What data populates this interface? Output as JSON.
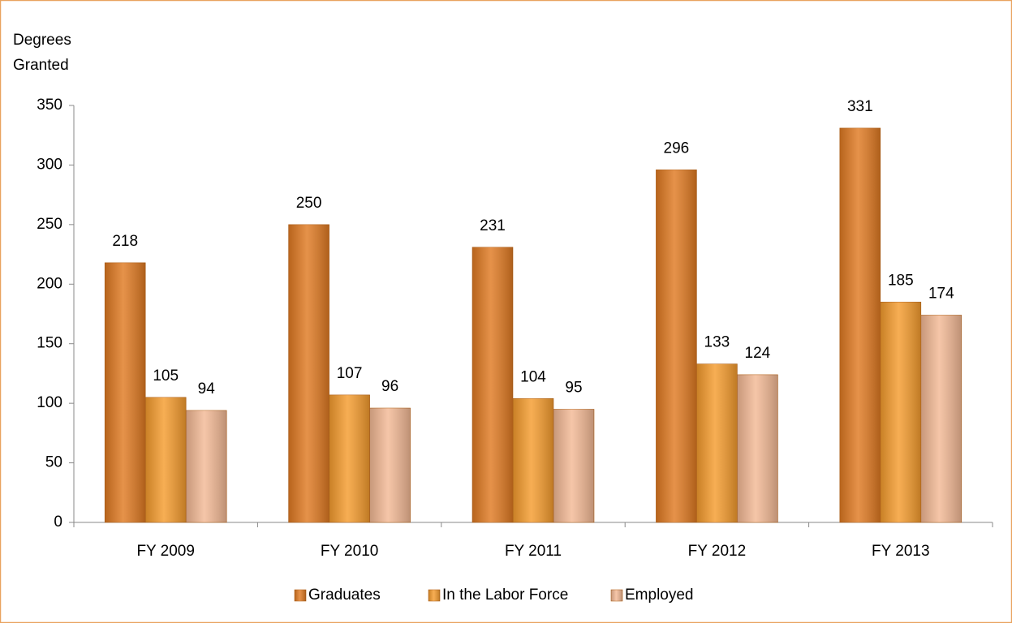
{
  "chart_data": {
    "type": "bar",
    "y_label": "Degrees Granted",
    "categories": [
      "FY 2009",
      "FY 2010",
      "FY 2011",
      "FY 2012",
      "FY 2013"
    ],
    "series": [
      {
        "name": "Graduates",
        "color": "#e07a22",
        "values": [
          218,
          250,
          231,
          296,
          331
        ]
      },
      {
        "name": "In the Labor Force",
        "color": "#f59c2e",
        "values": [
          105,
          107,
          104,
          133,
          185
        ]
      },
      {
        "name": "Employed",
        "color": "#f3b995",
        "values": [
          94,
          96,
          95,
          124,
          174
        ]
      }
    ],
    "ylim": [
      0,
      350
    ],
    "yticks": [
      0,
      50,
      100,
      150,
      200,
      250,
      300,
      350
    ],
    "legend": "bottom"
  }
}
